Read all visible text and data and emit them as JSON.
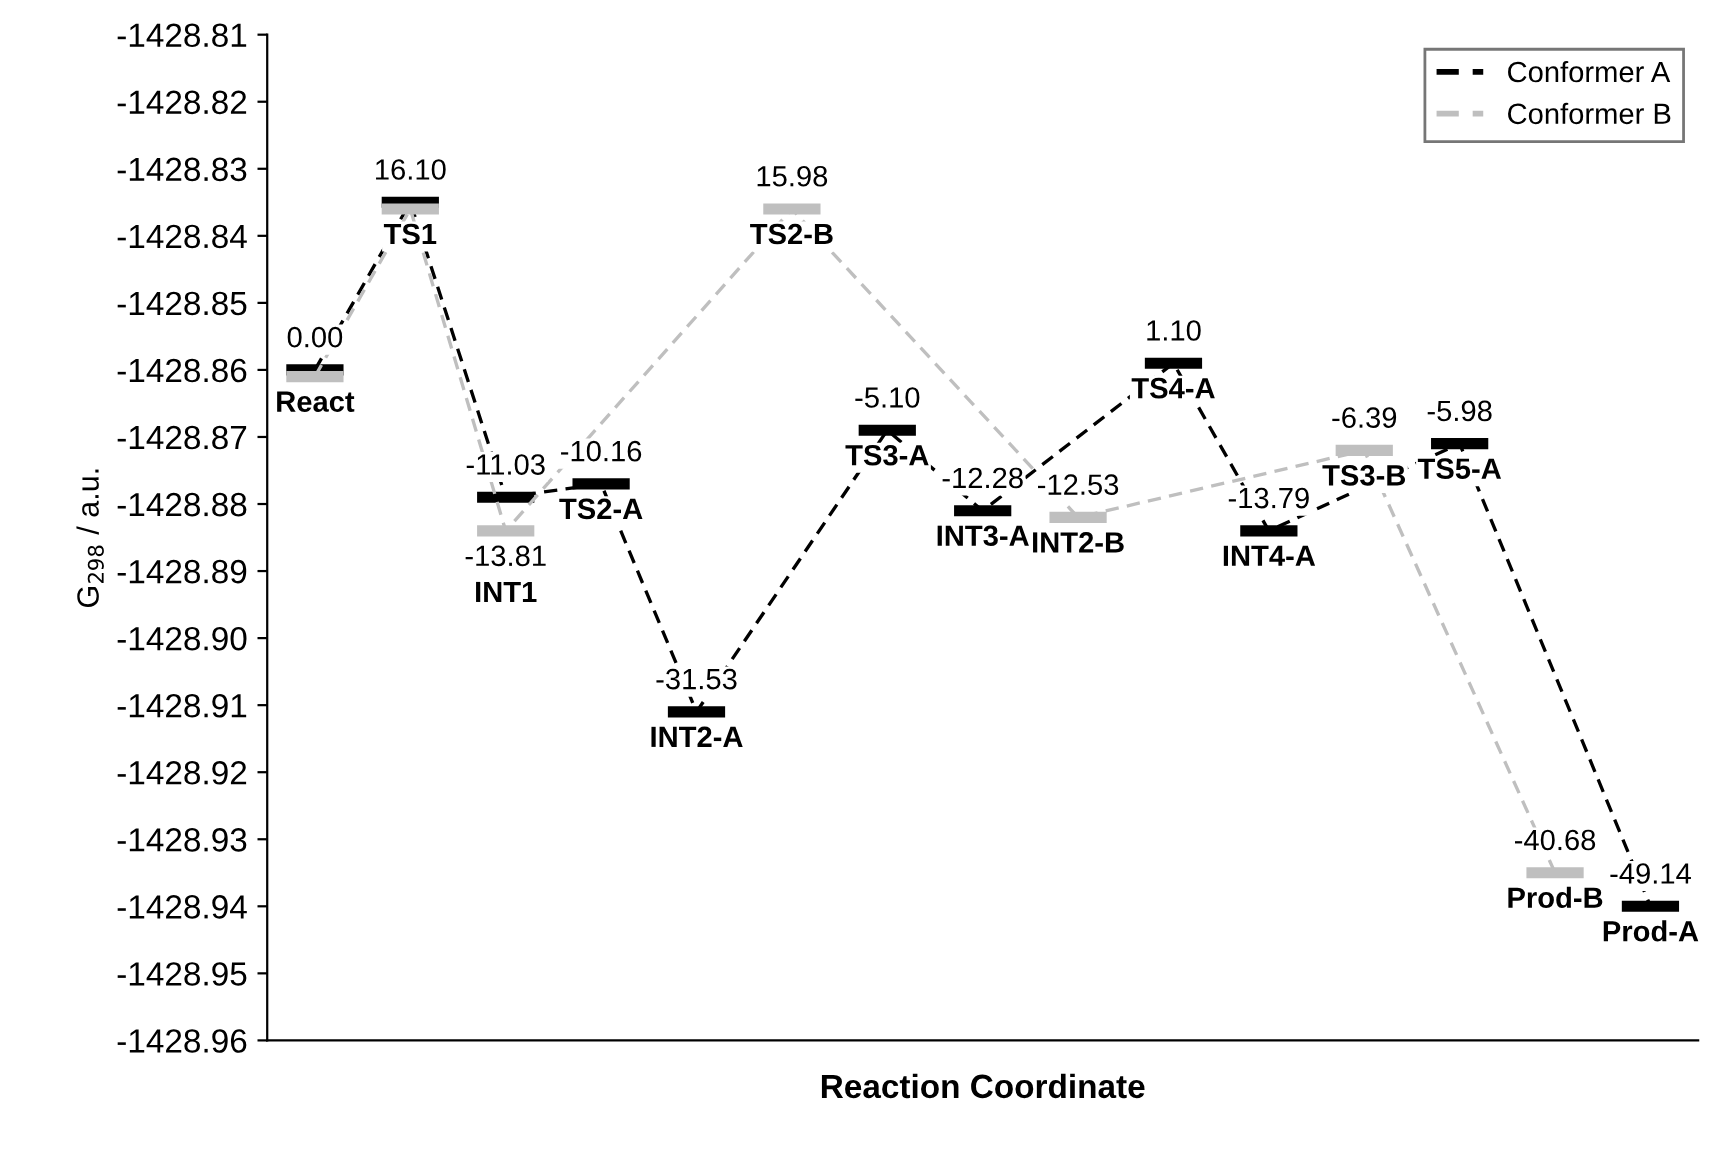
{
  "chart_data": {
    "type": "line",
    "xlabel": "Reaction Coordinate",
    "ylabel": "G$_{298}$ / a.u.",
    "categories": [
      "React",
      "TS1",
      "INT1",
      "TS2-A",
      "INT2-A",
      "TS2-B",
      "TS3-A",
      "INT3-A",
      "INT2-B",
      "TS4-A",
      "INT4-A",
      "TS3-B",
      "TS5-A",
      "Prod-B",
      "Prod-A"
    ],
    "series": [
      {
        "name": "Conformer A",
        "color": "#000000",
        "values": [
          -1428.86,
          -1428.835,
          -1428.879,
          -1428.877,
          -1428.911,
          null,
          -1428.869,
          -1428.881,
          null,
          -1428.859,
          -1428.884,
          null,
          -1428.871,
          null,
          -1428.94
        ]
      },
      {
        "name": "Conformer B",
        "color": "#bfbfbf",
        "values": [
          -1428.861,
          -1428.836,
          -1428.884,
          null,
          null,
          -1428.836,
          null,
          null,
          -1428.882,
          null,
          null,
          -1428.872,
          null,
          -1428.935,
          null
        ]
      }
    ],
    "annotations": [
      {
        "text": "0.00",
        "x": "React",
        "y": -1428.86
      },
      {
        "text": "16.10",
        "x": "TS1",
        "y": -1428.835
      },
      {
        "text": "-11.03",
        "x": "INT1",
        "y": -1428.879
      },
      {
        "text": "-13.81",
        "x": "INT1",
        "y": -1428.884
      },
      {
        "text": "-10.16",
        "x": "TS2-A",
        "y": -1428.877
      },
      {
        "text": "-31.53",
        "x": "INT2-A",
        "y": -1428.911
      },
      {
        "text": "15.98",
        "x": "TS2-B",
        "y": -1428.836
      },
      {
        "text": "-5.10",
        "x": "TS3-A",
        "y": -1428.869
      },
      {
        "text": "-12.28",
        "x": "INT3-A",
        "y": -1428.881
      },
      {
        "text": "-12.53",
        "x": "INT2-B",
        "y": -1428.882
      },
      {
        "text": "1.10",
        "x": "TS4-A",
        "y": -1428.859
      },
      {
        "text": "-13.79",
        "x": "INT4-A",
        "y": -1428.884
      },
      {
        "text": "-6.39",
        "x": "TS3-B",
        "y": -1428.872
      },
      {
        "text": "-5.98",
        "x": "TS5-A",
        "y": -1428.871
      },
      {
        "text": "-40.68",
        "x": "Prod-B",
        "y": -1428.935
      },
      {
        "text": "-49.14",
        "x": "Prod-A",
        "y": -1428.94
      }
    ],
    "ylim": [
      -1428.96,
      -1428.81
    ],
    "yticks": [
      -1428.96,
      -1428.95,
      -1428.94,
      -1428.93,
      -1428.92,
      -1428.91,
      {
        "value": -1428.9,
        "label": "-1428.90"
      },
      -1428.89,
      -1428.88,
      -1428.87,
      -1428.86,
      -1428.85,
      -1428.84,
      -1428.83,
      -1428.82,
      -1428.81
    ],
    "line_style": "dashed",
    "legend": "top right",
    "grid": false,
    "tick_labels": "y"
  }
}
